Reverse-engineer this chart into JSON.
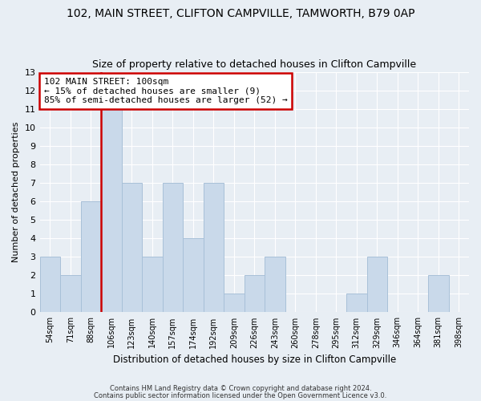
{
  "title1": "102, MAIN STREET, CLIFTON CAMPVILLE, TAMWORTH, B79 0AP",
  "title2": "Size of property relative to detached houses in Clifton Campville",
  "xlabel": "Distribution of detached houses by size in Clifton Campville",
  "ylabel": "Number of detached properties",
  "bin_labels": [
    "54sqm",
    "71sqm",
    "88sqm",
    "106sqm",
    "123sqm",
    "140sqm",
    "157sqm",
    "174sqm",
    "192sqm",
    "209sqm",
    "226sqm",
    "243sqm",
    "260sqm",
    "278sqm",
    "295sqm",
    "312sqm",
    "329sqm",
    "346sqm",
    "364sqm",
    "381sqm",
    "398sqm"
  ],
  "bin_values": [
    3,
    2,
    6,
    11,
    7,
    3,
    7,
    4,
    7,
    1,
    2,
    3,
    0,
    0,
    0,
    1,
    3,
    0,
    0,
    2,
    0
  ],
  "bar_color": "#c9d9ea",
  "bar_edgecolor": "#a8c0d8",
  "vline_color": "#cc0000",
  "ylim": [
    0,
    13
  ],
  "yticks": [
    0,
    1,
    2,
    3,
    4,
    5,
    6,
    7,
    8,
    9,
    10,
    11,
    12,
    13
  ],
  "annotation_text": "102 MAIN STREET: 100sqm\n← 15% of detached houses are smaller (9)\n85% of semi-detached houses are larger (52) →",
  "footer1": "Contains HM Land Registry data © Crown copyright and database right 2024.",
  "footer2": "Contains public sector information licensed under the Open Government Licence v3.0.",
  "bg_color": "#e8eef4",
  "plot_bg_color": "#e8eef4",
  "grid_color": "#ffffff"
}
